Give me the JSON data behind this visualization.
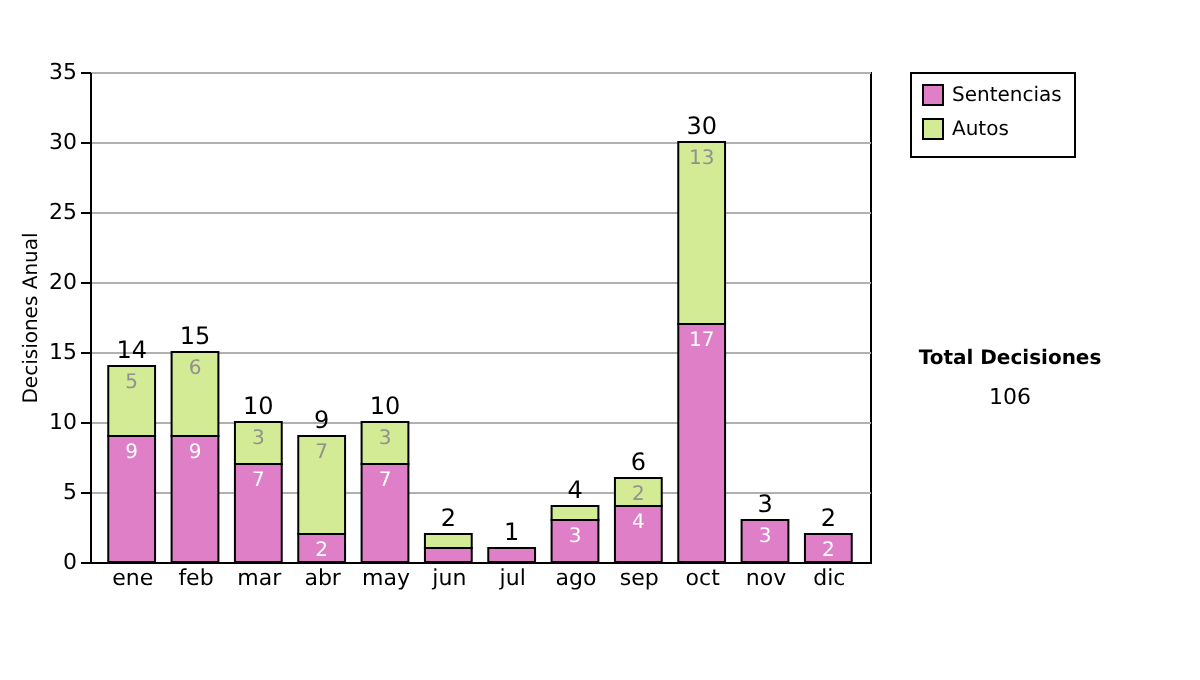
{
  "chart_data": {
    "type": "bar",
    "stacked": true,
    "ylabel": "Decisiones Anual",
    "categories": [
      "ene",
      "feb",
      "mar",
      "abr",
      "may",
      "jun",
      "jul",
      "ago",
      "sep",
      "oct",
      "nov",
      "dic"
    ],
    "series": [
      {
        "name": "Sentencias",
        "color": "#df7fc8",
        "values": [
          9,
          9,
          7,
          2,
          7,
          1,
          1,
          3,
          4,
          17,
          3,
          2
        ],
        "value_labels": [
          "9",
          "9",
          "7",
          "2",
          "7",
          null,
          null,
          "3",
          "4",
          "17",
          "3",
          "2"
        ]
      },
      {
        "name": "Autos",
        "color": "#d3eb94",
        "values": [
          5,
          6,
          3,
          7,
          3,
          1,
          null,
          1,
          2,
          13,
          null,
          null
        ],
        "value_labels": [
          "5",
          "6",
          "3",
          "7",
          "3",
          null,
          null,
          null,
          "2",
          "13",
          null,
          null
        ]
      }
    ],
    "totals": [
      "14",
      "15",
      "10",
      "9",
      "10",
      "2",
      "1",
      "4",
      "6",
      "30",
      "3",
      "2"
    ],
    "ylim": [
      0,
      35
    ],
    "yticks": [
      0,
      5,
      10,
      15,
      20,
      25,
      30,
      35
    ],
    "grid": "y",
    "legend": "right",
    "annotations": [
      "Total Decisiones",
      "106"
    ]
  }
}
